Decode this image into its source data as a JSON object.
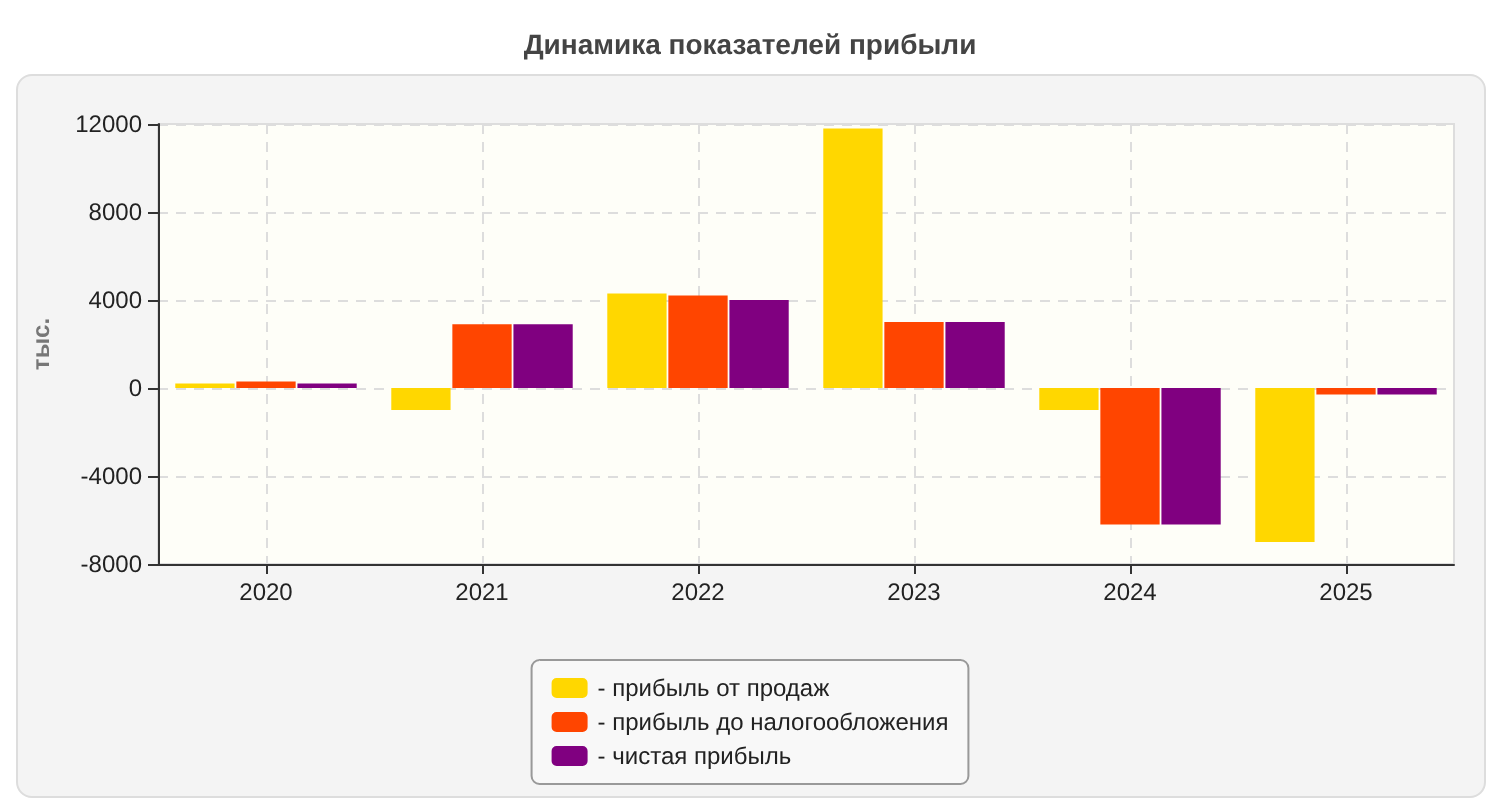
{
  "chart_data": {
    "type": "bar",
    "title": "Динамика показателей прибыли",
    "ylabel": "тыс.",
    "categories": [
      "2020",
      "2021",
      "2022",
      "2023",
      "2024",
      "2025"
    ],
    "series": [
      {
        "name": "- прибыль от продаж",
        "color": "#ffd700",
        "values": [
          200,
          -1000,
          4300,
          11800,
          -1000,
          -7000
        ]
      },
      {
        "name": "- прибыль до налогообложения",
        "color": "#ff4500",
        "values": [
          300,
          2900,
          4200,
          3000,
          -6200,
          -300
        ]
      },
      {
        "name": "- чистая прибыль",
        "color": "#800080",
        "values": [
          200,
          2900,
          4000,
          3000,
          -6200,
          -300
        ]
      }
    ],
    "ylim": [
      -8000,
      12000
    ],
    "yticks": [
      -8000,
      -4000,
      0,
      4000,
      8000,
      12000
    ],
    "grid": true,
    "legend": "bottom"
  }
}
